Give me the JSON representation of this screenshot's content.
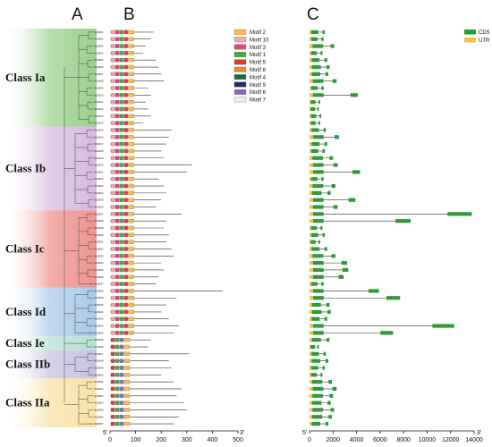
{
  "panels": [
    "A",
    "B",
    "C"
  ],
  "classes": [
    {
      "name": "Class Ia",
      "color": "#7cc16a",
      "count": 14
    },
    {
      "name": "Class Ib",
      "color": "#c8a3d3",
      "count": 12
    },
    {
      "name": "Class Ic",
      "color": "#e8706b",
      "count": 11
    },
    {
      "name": "Class Id",
      "color": "#8fb8e2",
      "count": 7
    },
    {
      "name": "Class Ie",
      "color": "#9fd4c4",
      "count": 2
    },
    {
      "name": "Class IIb",
      "color": "#b7acd8",
      "count": 4
    },
    {
      "name": "Class IIa",
      "color": "#f6d98a",
      "count": 7
    }
  ],
  "motif_legend": [
    {
      "label": "Motif 2",
      "color": "#f7b94b"
    },
    {
      "label": "Motif 10",
      "color": "#f6a8a0"
    },
    {
      "label": "Motif 3",
      "color": "#e8427a"
    },
    {
      "label": "Motif 1",
      "color": "#3fae3f"
    },
    {
      "label": "Motif 5",
      "color": "#e23a30"
    },
    {
      "label": "Motif 8",
      "color": "#f08a2a"
    },
    {
      "label": "Motif 4",
      "color": "#1e6e3a"
    },
    {
      "label": "Motif 9",
      "color": "#1c2a6e"
    },
    {
      "label": "Motif 6",
      "color": "#8a6bb8"
    },
    {
      "label": "Motif 7",
      "color": "#e9efe3"
    }
  ],
  "structure_legend": [
    {
      "label": "CDS",
      "color": "#2f9a3a"
    },
    {
      "label": "UTR",
      "color": "#f5c04a"
    }
  ],
  "motif_axis": {
    "min": 0,
    "max": 500,
    "ticks": [
      0,
      100,
      200,
      300,
      400,
      500
    ],
    "left_end": "5'",
    "right_end": "3'"
  },
  "gene_axis": {
    "min": 0,
    "max": 14000,
    "ticks": [
      0,
      2000,
      4000,
      6000,
      8000,
      10000,
      12000,
      14000
    ],
    "left_end": "5'",
    "right_end": "3'"
  },
  "genes": [
    {
      "name": "NtLBD01",
      "len": 170,
      "gene_len": 1300
    },
    {
      "name": "NtLBD02",
      "len": 160,
      "gene_len": 1200
    },
    {
      "name": "NtLBD03",
      "len": 140,
      "gene_len": 2100
    },
    {
      "name": "NtLBD04",
      "len": 130,
      "gene_len": 1100
    },
    {
      "name": "NtLBD05",
      "len": 180,
      "gene_len": 1500
    },
    {
      "name": "NtLBD06",
      "len": 190,
      "gene_len": 1700
    },
    {
      "name": "NtLBD07",
      "len": 200,
      "gene_len": 1600
    },
    {
      "name": "NtLBD08",
      "len": 210,
      "gene_len": 2300
    },
    {
      "name": "NtLBD09",
      "len": 150,
      "gene_len": 1200
    },
    {
      "name": "NtLBD10",
      "len": 160,
      "gene_len": 4100
    },
    {
      "name": "NtLBD11",
      "len": 140,
      "gene_len": 900
    },
    {
      "name": "NtLBD12",
      "len": 150,
      "gene_len": 800
    },
    {
      "name": "NtLBD13",
      "len": 160,
      "gene_len": 1000
    },
    {
      "name": "NtLBD14",
      "len": 130,
      "gene_len": 900
    },
    {
      "name": "NtLBD15",
      "len": 240,
      "gene_len": 1400
    },
    {
      "name": "NtLBD16",
      "len": 230,
      "gene_len": 2500
    },
    {
      "name": "NtLBD17",
      "len": 220,
      "gene_len": 1500
    },
    {
      "name": "NtLBD18",
      "len": 200,
      "gene_len": 1300
    },
    {
      "name": "NtLBD19",
      "len": 210,
      "gene_len": 2000
    },
    {
      "name": "NtLBD20",
      "len": 320,
      "gene_len": 2400
    },
    {
      "name": "NtLBD21",
      "len": 300,
      "gene_len": 4300
    },
    {
      "name": "NtLBD22",
      "len": 190,
      "gene_len": 1200
    },
    {
      "name": "NtLBD23",
      "len": 210,
      "gene_len": 2200
    },
    {
      "name": "NtLBD24",
      "len": 220,
      "gene_len": 1800
    },
    {
      "name": "NtLBD25",
      "len": 200,
      "gene_len": 3900
    },
    {
      "name": "NtLBD26",
      "len": 180,
      "gene_len": 2400
    },
    {
      "name": "NtLBD27",
      "len": 280,
      "gene_len": 13800
    },
    {
      "name": "NtLBD28",
      "len": 220,
      "gene_len": 8600
    },
    {
      "name": "NtLBD29",
      "len": 210,
      "gene_len": 1100
    },
    {
      "name": "NtLBD30",
      "len": 230,
      "gene_len": 1300
    },
    {
      "name": "NtLBD31",
      "len": 220,
      "gene_len": 900
    },
    {
      "name": "NtLBD32",
      "len": 240,
      "gene_len": 1500
    },
    {
      "name": "NtLBD33",
      "len": 250,
      "gene_len": 2200
    },
    {
      "name": "NtLBD34",
      "len": 200,
      "gene_len": 3200
    },
    {
      "name": "NtLBD35",
      "len": 210,
      "gene_len": 3300
    },
    {
      "name": "NtLBD36",
      "len": 190,
      "gene_len": 2900
    },
    {
      "name": "NtLBD37",
      "len": 180,
      "gene_len": 1200
    },
    {
      "name": "NtLBD38",
      "len": 440,
      "gene_len": 5900
    },
    {
      "name": "NtLBD39",
      "len": 260,
      "gene_len": 7700
    },
    {
      "name": "NtLBD40",
      "len": 220,
      "gene_len": 1700
    },
    {
      "name": "NtLBD41",
      "len": 200,
      "gene_len": 1800
    },
    {
      "name": "NtLBD42",
      "len": 230,
      "gene_len": 1500
    },
    {
      "name": "NtLBD43",
      "len": 270,
      "gene_len": 12300
    },
    {
      "name": "NtLBD44",
      "len": 250,
      "gene_len": 7100
    },
    {
      "name": "NtLBD45",
      "len": 160,
      "gene_len": 1700
    },
    {
      "name": "NtLBD46",
      "len": 150,
      "gene_len": 800
    },
    {
      "name": "NtLBD47",
      "len": 310,
      "gene_len": 1400
    },
    {
      "name": "NtLBD48",
      "len": 230,
      "gene_len": 1600
    },
    {
      "name": "NtLBD49",
      "len": 240,
      "gene_len": 1300
    },
    {
      "name": "NtLBD50",
      "len": 200,
      "gene_len": 1100
    },
    {
      "name": "NtLBD51",
      "len": 250,
      "gene_len": 1900
    },
    {
      "name": "NtLBD52",
      "len": 280,
      "gene_len": 2300
    },
    {
      "name": "NtLBD53",
      "len": 260,
      "gene_len": 2000
    },
    {
      "name": "NtLBD54",
      "len": 290,
      "gene_len": 1800
    },
    {
      "name": "NtLBD55",
      "len": 300,
      "gene_len": 2100
    },
    {
      "name": "NtLBD56",
      "len": 270,
      "gene_len": 1900
    },
    {
      "name": "NtLBD57",
      "len": 250,
      "gene_len": 1600
    }
  ]
}
